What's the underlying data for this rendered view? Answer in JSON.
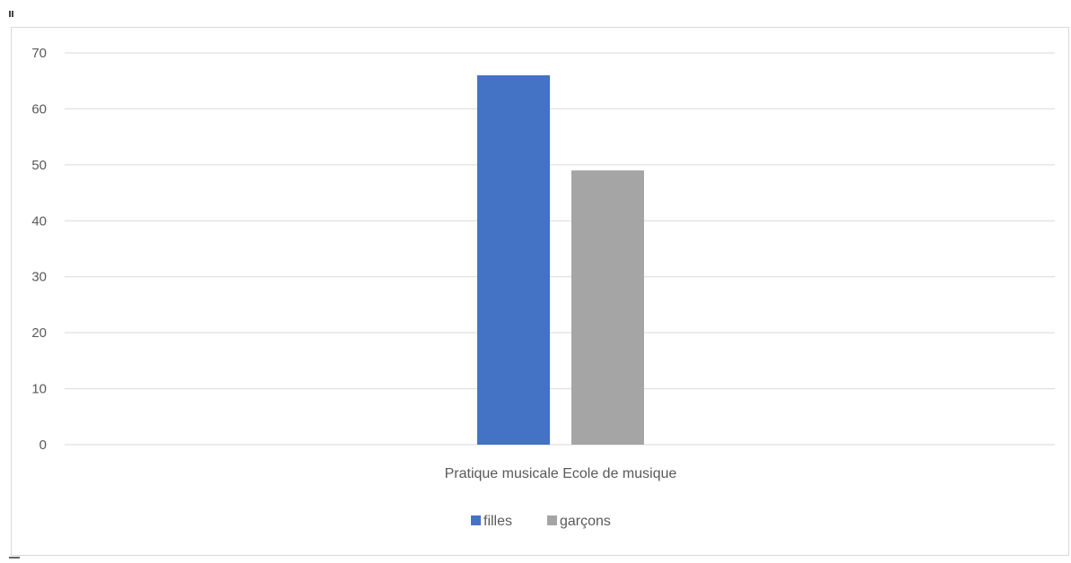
{
  "chart_data": {
    "type": "bar",
    "categories": [
      "Pratique musicale Ecole de musique"
    ],
    "series": [
      {
        "name": "filles",
        "values": [
          66
        ],
        "color": "#4472c4"
      },
      {
        "name": "garçons",
        "values": [
          49
        ],
        "color": "#a5a5a5"
      }
    ],
    "title": "",
    "xlabel": "",
    "ylabel": "",
    "ylim": [
      0,
      70
    ],
    "yticks": [
      0,
      10,
      20,
      30,
      40,
      50,
      60,
      70
    ],
    "grid": true,
    "legend": "bottom-center",
    "gridline_color": "#d9d9d9"
  }
}
